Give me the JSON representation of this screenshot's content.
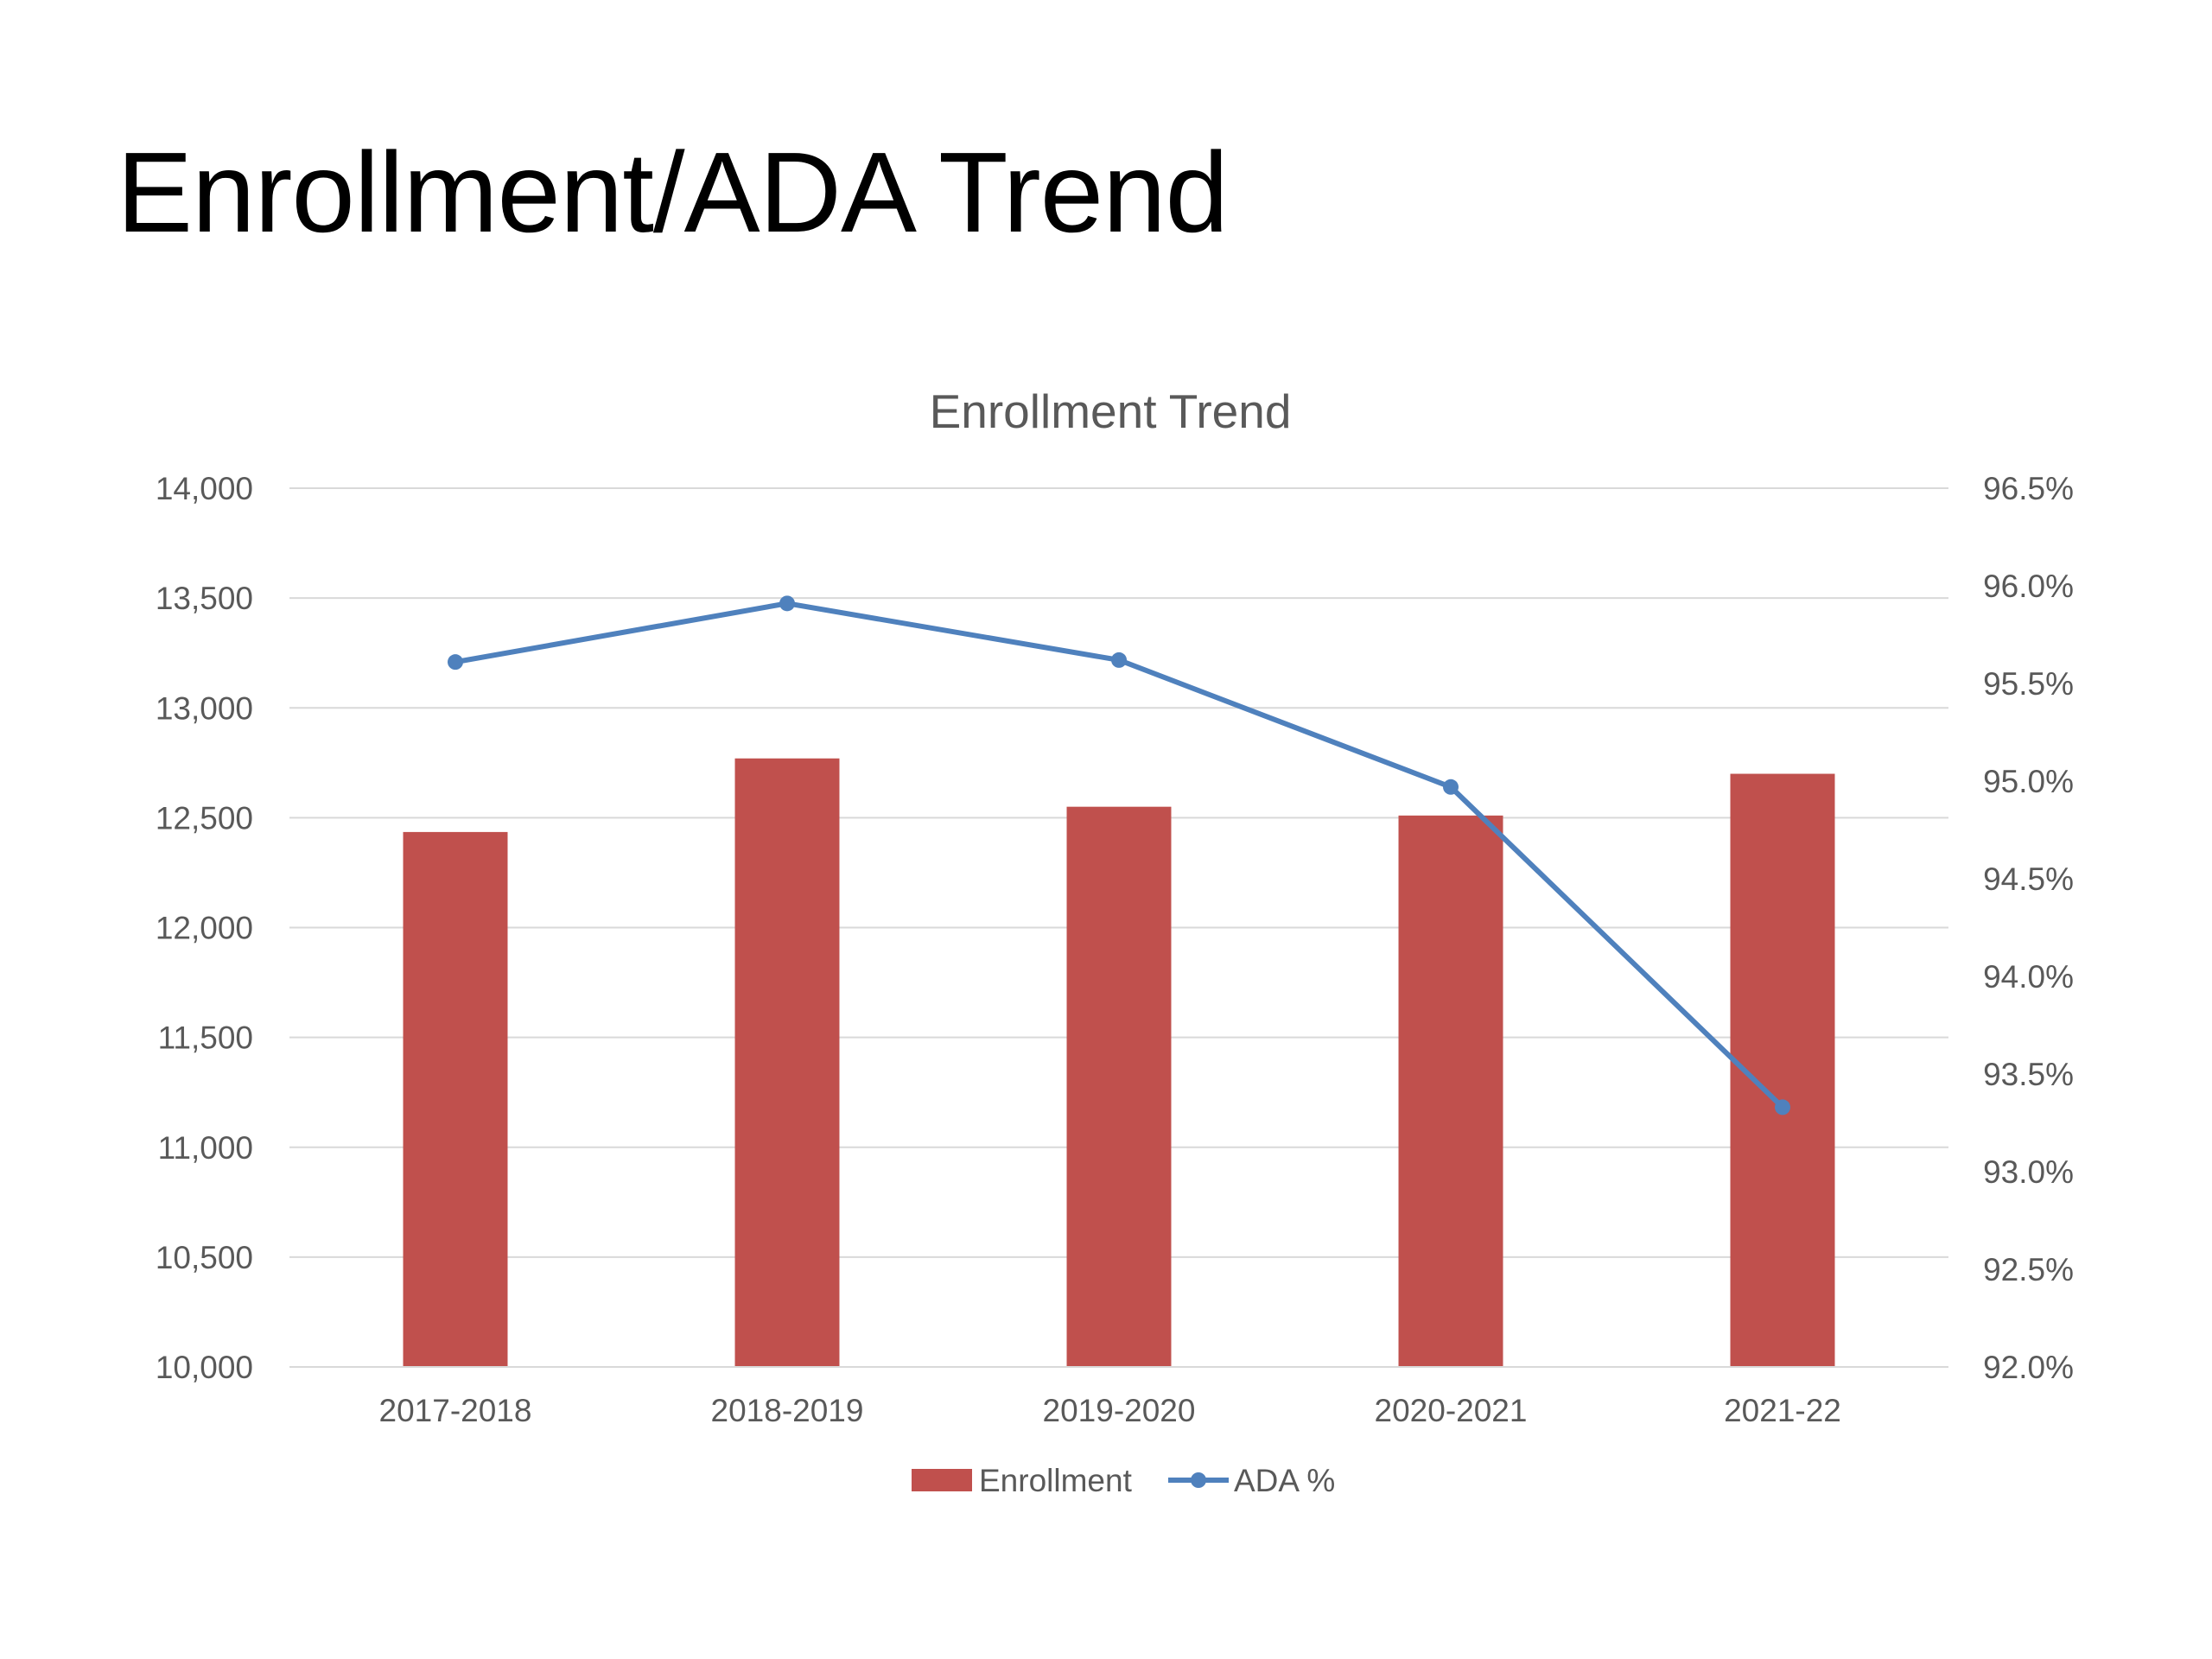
{
  "slide": {
    "title": "Enrollment/ADA Trend"
  },
  "chart_data": {
    "type": "bar",
    "title": "Enrollment Trend",
    "categories": [
      "2017-2018",
      "2018-2019",
      "2019-2020",
      "2020-2021",
      "2021-22"
    ],
    "series": [
      {
        "name": "Enrollment",
        "type": "bar",
        "axis": "left",
        "color": "#C0504D",
        "values": [
          12435,
          12770,
          12550,
          12510,
          12700
        ]
      },
      {
        "name": "ADA %",
        "type": "line",
        "axis": "right",
        "color": "#4F81BD",
        "values": [
          95.61,
          95.91,
          95.62,
          94.97,
          93.33
        ]
      }
    ],
    "y_left": {
      "min": 10000,
      "max": 14000,
      "ticks": [
        10000,
        10500,
        11000,
        11500,
        12000,
        12500,
        13000,
        13500,
        14000
      ],
      "tick_labels": [
        "10,000",
        "10,500",
        "11,000",
        "11,500",
        "12,000",
        "12,500",
        "13,000",
        "13,500",
        "14,000"
      ]
    },
    "y_right": {
      "min": 92.0,
      "max": 96.5,
      "ticks": [
        92.0,
        92.5,
        93.0,
        93.5,
        94.0,
        94.5,
        95.0,
        95.5,
        96.0,
        96.5
      ],
      "tick_labels": [
        "92.0%",
        "92.5%",
        "93.0%",
        "93.5%",
        "94.0%",
        "94.5%",
        "95.0%",
        "95.5%",
        "96.0%",
        "96.5%"
      ]
    },
    "grid": true,
    "legend_position": "bottom"
  }
}
